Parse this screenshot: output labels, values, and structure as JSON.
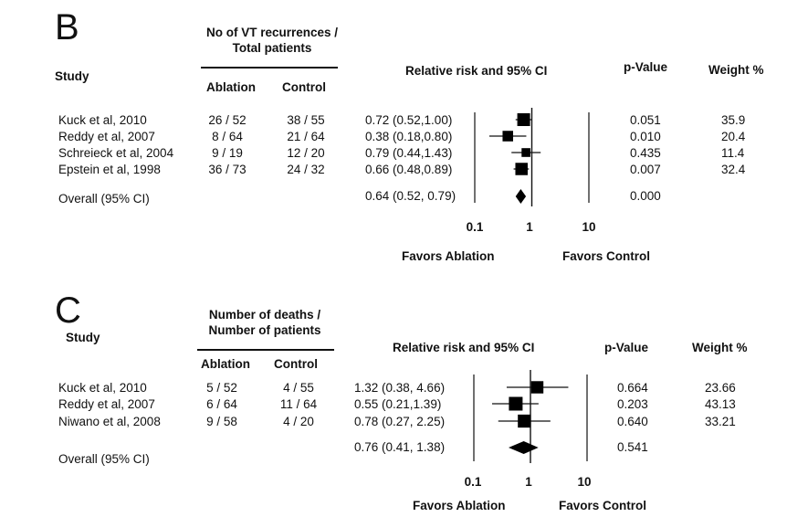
{
  "chart_data": [
    {
      "type": "forest",
      "panel_label": "B",
      "study_header": "Study",
      "group_header_line1": "No of VT recurrences /",
      "group_header_line2": "Total patients",
      "col_ablation": "Ablation",
      "col_control": "Control",
      "effect_header": "Relative risk and 95% CI",
      "pvalue_header": "p-Value",
      "weight_header": "Weight %",
      "x_scale": "log",
      "xlim": [
        0.1,
        10
      ],
      "ticks": [
        "0.1",
        "1",
        "10"
      ],
      "favors_left": "Favors Ablation",
      "favors_right": "Favors Control",
      "studies": [
        {
          "name": "Kuck et al, 2010",
          "ablation": "26 / 52",
          "control": "38 / 55",
          "ci_text": "0.72 (0.52,1.00)",
          "rr": 0.72,
          "lo": 0.52,
          "hi": 1.0,
          "p": "0.051",
          "weight": "35.9",
          "w": 35.9
        },
        {
          "name": "Reddy et al, 2007",
          "ablation": "8 / 64",
          "control": "21 / 64",
          "ci_text": "0.38 (0.18,0.80)",
          "rr": 0.38,
          "lo": 0.18,
          "hi": 0.8,
          "p": "0.010",
          "weight": "20.4",
          "w": 20.4
        },
        {
          "name": "Schreieck et al, 2004",
          "ablation": "9 / 19",
          "control": "12 / 20",
          "ci_text": "0.79 (0.44,1.43)",
          "rr": 0.79,
          "lo": 0.44,
          "hi": 1.43,
          "p": "0.435",
          "weight": "11.4",
          "w": 11.4
        },
        {
          "name": "Epstein et al, 1998",
          "ablation": "36 / 73",
          "control": "24 / 32",
          "ci_text": "0.66 (0.48,0.89)",
          "rr": 0.66,
          "lo": 0.48,
          "hi": 0.89,
          "p": "0.007",
          "weight": "32.4",
          "w": 32.4
        }
      ],
      "overall": {
        "name": "Overall (95% CI)",
        "ci_text": "0.64 (0.52, 0.79)",
        "rr": 0.64,
        "lo": 0.52,
        "hi": 0.79,
        "p": "0.000"
      }
    },
    {
      "type": "forest",
      "panel_label": "C",
      "study_header": "Study",
      "group_header_line1": "Number of deaths /",
      "group_header_line2": "Number of patients",
      "col_ablation": "Ablation",
      "col_control": "Control",
      "effect_header": "Relative risk and 95% CI",
      "pvalue_header": "p-Value",
      "weight_header": "Weight %",
      "x_scale": "log",
      "xlim": [
        0.1,
        10
      ],
      "ticks": [
        "0.1",
        "1",
        "10"
      ],
      "favors_left": "Favors Ablation",
      "favors_right": "Favors Control",
      "studies": [
        {
          "name": "Kuck et al, 2010",
          "ablation": "5 / 52",
          "control": "4 / 55",
          "ci_text": "1.32 (0.38, 4.66)",
          "rr": 1.32,
          "lo": 0.38,
          "hi": 4.66,
          "p": "0.664",
          "weight": "23.66",
          "w": 23.66
        },
        {
          "name": "Reddy et al, 2007",
          "ablation": "6 / 64",
          "control": "11 / 64",
          "ci_text": "0.55 (0.21,1.39)",
          "rr": 0.55,
          "lo": 0.21,
          "hi": 1.39,
          "p": "0.203",
          "weight": "43.13",
          "w": 43.13
        },
        {
          "name": "Niwano et al, 2008",
          "ablation": "9 / 58",
          "control": "4 / 20",
          "ci_text": "0.78 (0.27, 2.25)",
          "rr": 0.78,
          "lo": 0.27,
          "hi": 2.25,
          "p": "0.640",
          "weight": "33.21",
          "w": 33.21
        }
      ],
      "overall": {
        "name": "Overall (95% CI)",
        "ci_text": "0.76 (0.41, 1.38)",
        "rr": 0.76,
        "lo": 0.41,
        "hi": 1.38,
        "p": "0.541"
      }
    }
  ]
}
